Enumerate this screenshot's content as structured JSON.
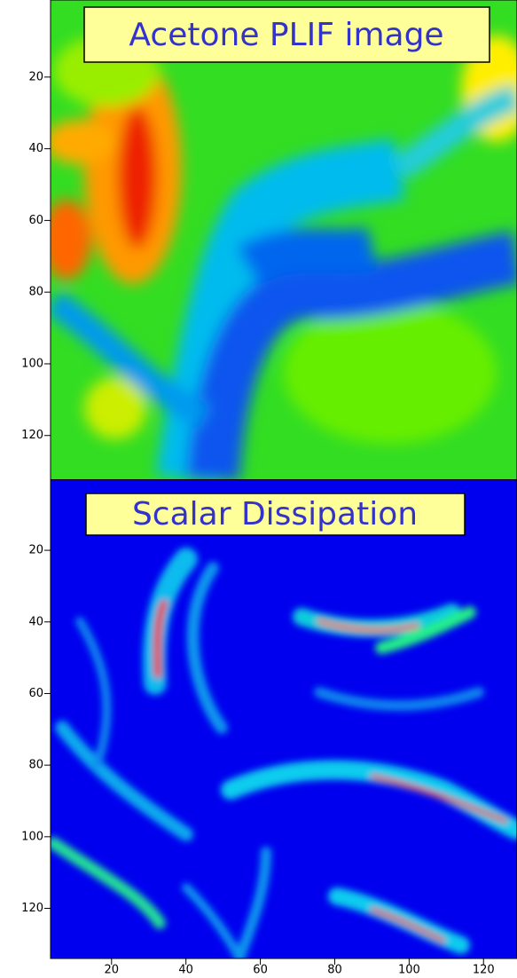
{
  "chart_data": [
    {
      "type": "image",
      "title": "Acetone PLIF image",
      "ylim": [
        132.2,
        -1.5
      ],
      "yticks": [
        20,
        40,
        60,
        80,
        100,
        120
      ]
    },
    {
      "type": "image",
      "title": "Scalar Dissipation",
      "ylim": [
        134,
        0.4
      ],
      "yticks": [
        20,
        40,
        60,
        80,
        100,
        120
      ],
      "xlim": [
        3.6,
        129
      ],
      "xticks": [
        20,
        40,
        60,
        80,
        100,
        120
      ]
    }
  ]
}
